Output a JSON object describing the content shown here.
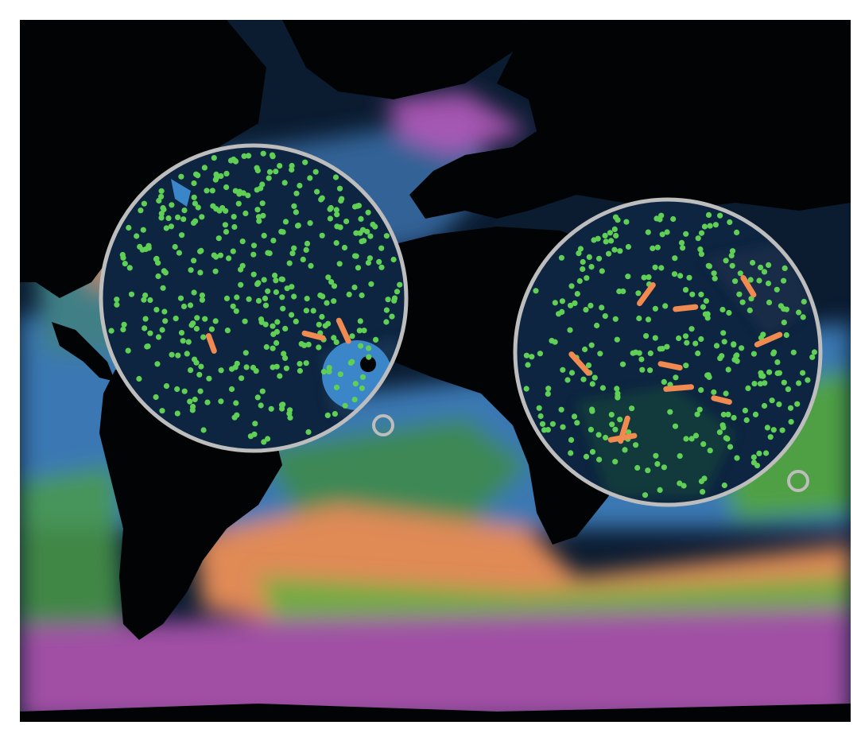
{
  "map": {
    "colors": {
      "land": "#020305",
      "deep_ocean": "#0b1c31",
      "temperate_blue": "#3a78b3",
      "teal": "#3f7f86",
      "green_band": "#4fa044",
      "orange_band": "#e08a56",
      "purple_band": "#a04fa4",
      "lens_ring": "#bdbdbd",
      "particle_green": "#5fcf55",
      "drifter_orange": "#f08a50"
    },
    "magnifier_lenses": [
      {
        "id": "north-atlantic-lens",
        "particles": 380,
        "drifters": 3
      },
      {
        "id": "south-atlantic-lens",
        "particles": 300,
        "drifters": 10
      }
    ],
    "lens_markers": [
      {
        "id": "north-atlantic-marker"
      },
      {
        "id": "south-atlantic-marker"
      }
    ]
  }
}
